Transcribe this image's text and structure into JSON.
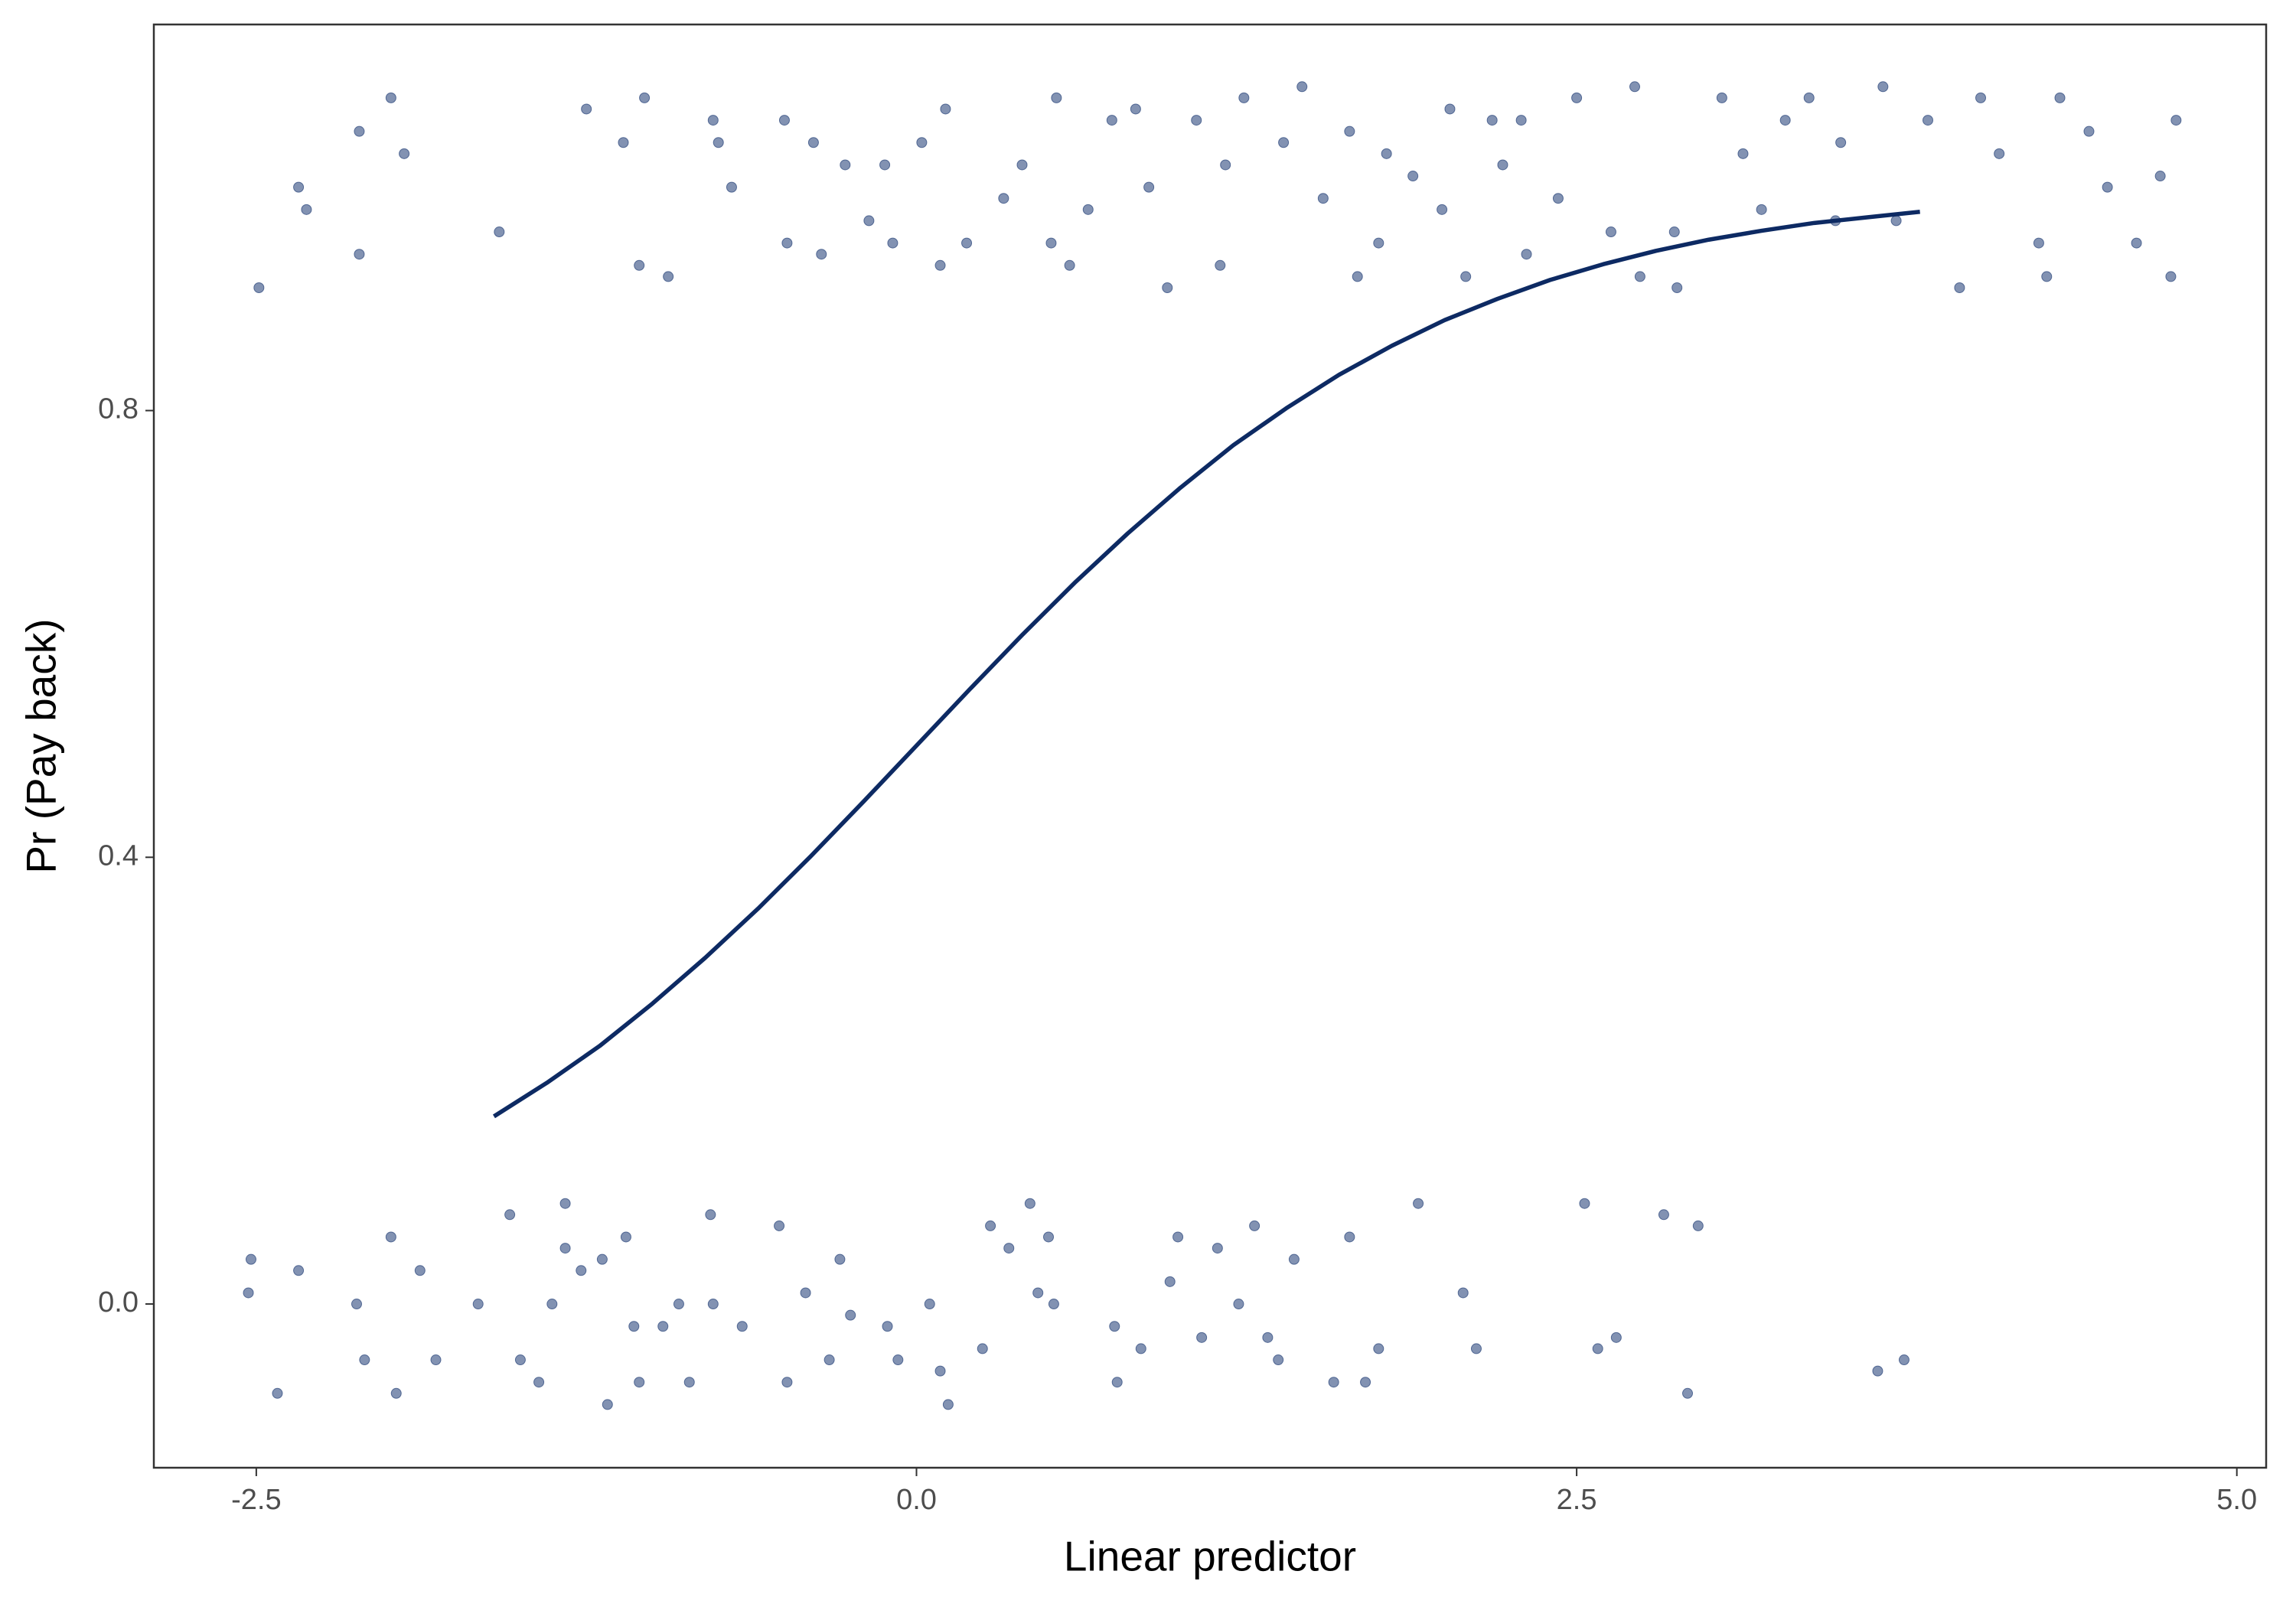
{
  "chart_data": {
    "type": "scatter",
    "x_label": "Linear predictor",
    "y_label": "Pr (Pay back)",
    "xlim": [
      -2.888,
      5.111
    ],
    "ylim": [
      -0.1466,
      1.1457
    ],
    "xticks": [
      -2.5,
      {
        "value": 0,
        "label": "0.0"
      },
      2.5,
      {
        "value": 5,
        "label": "5.0"
      }
    ],
    "yticks": [
      {
        "value": 0,
        "label": "0.0"
      },
      0.4,
      0.8
    ],
    "series": [
      {
        "type": "scatter",
        "color": "#2f4a7e",
        "x": [
          -2.49,
          -2.34,
          -2.31,
          -2.11,
          -2.11,
          -1.99,
          -1.94,
          -1.58,
          -1.25,
          -1.11,
          -1.05,
          -1.03,
          -0.94,
          -0.77,
          -0.75,
          -0.7,
          -0.5,
          -0.49,
          -0.39,
          -0.36,
          -0.27,
          -0.18,
          -0.12,
          -0.09,
          0.02,
          0.11,
          0.09,
          0.19,
          0.33,
          0.4,
          0.53,
          0.51,
          0.58,
          0.65,
          0.74,
          0.83,
          0.88,
          0.95,
          1.06,
          1.17,
          1.15,
          1.24,
          1.39,
          1.46,
          1.54,
          1.64,
          1.67,
          1.75,
          1.78,
          1.88,
          2.02,
          1.99,
          2.08,
          2.18,
          2.22,
          2.29,
          2.31,
          2.43,
          2.5,
          2.63,
          2.72,
          2.74,
          2.87,
          2.88,
          3.05,
          3.13,
          3.2,
          3.29,
          3.38,
          3.48,
          3.5,
          3.66,
          3.71,
          3.83,
          3.95,
          4.03,
          4.1,
          4.25,
          4.28,
          4.33,
          4.44,
          4.51,
          4.62,
          4.71,
          4.75,
          4.77,
          -2.53,
          -2.52,
          -2.42,
          -2.34,
          -2.12,
          -2.09,
          -1.99,
          -1.97,
          -1.88,
          -1.82,
          -1.66,
          -1.54,
          -1.5,
          -1.43,
          -1.38,
          -1.33,
          -1.33,
          -1.27,
          -1.19,
          -1.17,
          -1.1,
          -1.07,
          -1.05,
          -0.96,
          -0.9,
          -0.86,
          -0.78,
          -0.77,
          -0.66,
          -0.52,
          -0.49,
          -0.42,
          -0.33,
          -0.29,
          -0.25,
          -0.11,
          -0.07,
          0.05,
          0.09,
          0.12,
          0.25,
          0.28,
          0.35,
          0.43,
          0.46,
          0.5,
          0.52,
          0.75,
          0.76,
          0.85,
          0.96,
          0.99,
          1.08,
          1.14,
          1.22,
          1.28,
          1.33,
          1.37,
          1.43,
          1.58,
          1.64,
          1.7,
          1.75,
          1.9,
          2.07,
          2.12,
          2.53,
          2.58,
          2.65,
          2.83,
          2.92,
          2.96,
          3.64,
          3.74
        ],
        "values": [
          0.91,
          1.0,
          0.98,
          1.05,
          0.94,
          1.08,
          1.03,
          0.96,
          1.07,
          1.04,
          0.93,
          1.08,
          0.92,
          1.06,
          1.04,
          1.0,
          1.06,
          0.95,
          1.04,
          0.94,
          1.02,
          0.97,
          1.02,
          0.95,
          1.04,
          1.07,
          0.93,
          0.95,
          0.99,
          1.02,
          1.08,
          0.95,
          0.93,
          0.98,
          1.06,
          1.07,
          1.0,
          0.91,
          1.06,
          1.02,
          0.93,
          1.08,
          1.04,
          1.09,
          0.99,
          1.05,
          0.92,
          0.95,
          1.03,
          1.01,
          1.07,
          0.98,
          0.92,
          1.06,
          1.02,
          1.06,
          0.94,
          0.99,
          1.08,
          0.96,
          1.09,
          0.92,
          0.96,
          0.91,
          1.08,
          1.03,
          0.98,
          1.06,
          1.08,
          0.97,
          1.04,
          1.09,
          0.97,
          1.06,
          0.91,
          1.08,
          1.03,
          0.95,
          0.92,
          1.08,
          1.05,
          1.0,
          0.95,
          1.01,
          0.92,
          1.06,
          0.01,
          0.04,
          -0.08,
          0.03,
          0.0,
          -0.05,
          0.06,
          -0.08,
          0.03,
          -0.05,
          0.0,
          0.08,
          -0.05,
          -0.07,
          0.0,
          0.09,
          0.05,
          0.03,
          0.04,
          -0.09,
          0.06,
          -0.02,
          -0.07,
          -0.02,
          0.0,
          -0.07,
          0.08,
          0.0,
          -0.02,
          0.07,
          -0.07,
          0.01,
          -0.05,
          0.04,
          -0.01,
          -0.02,
          -0.05,
          0.0,
          -0.06,
          -0.09,
          -0.04,
          0.07,
          0.05,
          0.09,
          0.01,
          0.06,
          0.0,
          -0.02,
          -0.07,
          -0.04,
          0.02,
          0.06,
          -0.03,
          0.05,
          0.0,
          0.07,
          -0.03,
          -0.05,
          0.04,
          -0.07,
          0.06,
          -0.07,
          -0.04,
          0.09,
          0.01,
          -0.04,
          0.09,
          -0.04,
          -0.03,
          0.08,
          -0.08,
          0.07,
          -0.06,
          -0.05
        ]
      },
      {
        "type": "line",
        "color": "#0d2a63",
        "x": [
          -1.6,
          -1.4,
          -1.2,
          -1.0,
          -0.8,
          -0.6,
          -0.4,
          -0.2,
          0,
          0.2,
          0.4,
          0.6,
          0.8,
          1.0,
          1.2,
          1.4,
          1.6,
          1.8,
          2.0,
          2.2,
          2.4,
          2.6,
          2.8,
          3.0,
          3.2,
          3.4,
          3.6,
          3.8
        ],
        "values": [
          0.168,
          0.198,
          0.231,
          0.269,
          0.31,
          0.354,
          0.401,
          0.45,
          0.5,
          0.55,
          0.599,
          0.646,
          0.69,
          0.731,
          0.769,
          0.802,
          0.832,
          0.858,
          0.881,
          0.9,
          0.917,
          0.931,
          0.943,
          0.953,
          0.961,
          0.968,
          0.973,
          0.978
        ]
      }
    ]
  }
}
